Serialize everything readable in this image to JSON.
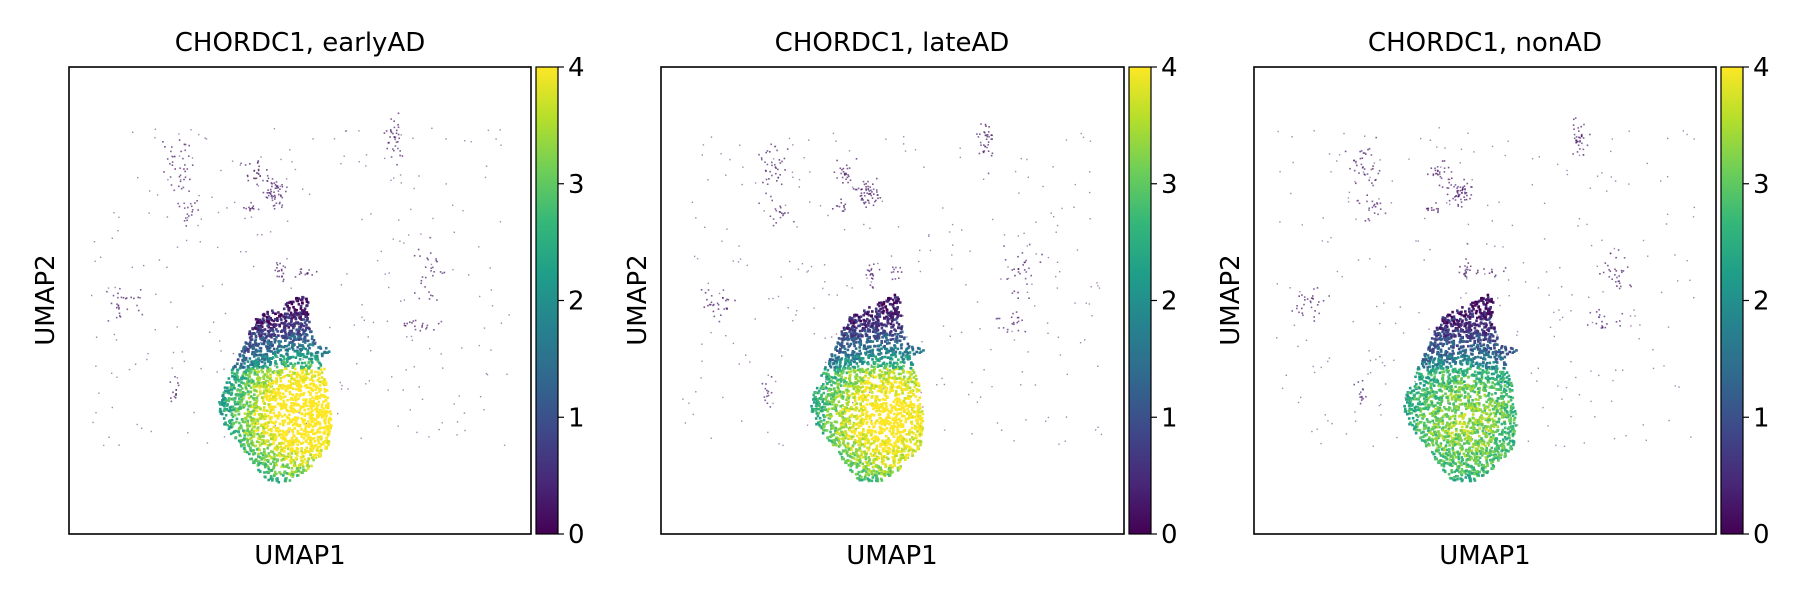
{
  "figure": {
    "panels": [
      {
        "title": "CHORDC1, earlyAD",
        "xlabel": "UMAP1",
        "ylabel": "UMAP2"
      },
      {
        "title": "CHORDC1, lateAD",
        "xlabel": "UMAP1",
        "ylabel": "UMAP2"
      },
      {
        "title": "CHORDC1, nonAD",
        "xlabel": "UMAP1",
        "ylabel": "UMAP2"
      }
    ],
    "colorbar": {
      "colormap": "viridis",
      "ticks": [
        "0",
        "1",
        "2",
        "3",
        "4"
      ],
      "stops": [
        "#440154",
        "#482878",
        "#3e4989",
        "#31688e",
        "#26828e",
        "#1f9e89",
        "#35b779",
        "#6ece58",
        "#b5de2b",
        "#fde725"
      ]
    }
  },
  "chart_data": [
    {
      "type": "scatter",
      "title": "CHORDC1, earlyAD",
      "xlabel": "UMAP1",
      "ylabel": "UMAP2",
      "color_range": [
        0,
        4
      ],
      "color_ticks": [
        0,
        1,
        2,
        3,
        4
      ],
      "colormap": "viridis",
      "axis_ticks": "hidden",
      "regions": [
        {
          "name": "main cluster",
          "x": 5.8,
          "y": 3.0,
          "expression": "high (0-4, yellow at lower right)"
        },
        {
          "name": "upper small clusters",
          "x": 4.2,
          "y": 7.5,
          "expression": "low (~0)"
        },
        {
          "name": "left scattered cells",
          "x": 1.5,
          "y": 4.5,
          "expression": "low (~0)"
        },
        {
          "name": "right scattered cells",
          "x": 8.0,
          "y": 5.0,
          "expression": "low (~0)"
        }
      ]
    },
    {
      "type": "scatter",
      "title": "CHORDC1, lateAD",
      "xlabel": "UMAP1",
      "ylabel": "UMAP2",
      "color_range": [
        0,
        4
      ],
      "color_ticks": [
        0,
        1,
        2,
        3,
        4
      ],
      "colormap": "viridis",
      "axis_ticks": "hidden",
      "regions": [
        {
          "name": "main cluster",
          "x": 5.5,
          "y": 3.0,
          "expression": "high (0-4, yellow at lower right)"
        },
        {
          "name": "upper small clusters",
          "x": 4.5,
          "y": 7.5,
          "expression": "low (~0)"
        }
      ]
    },
    {
      "type": "scatter",
      "title": "CHORDC1, nonAD",
      "xlabel": "UMAP1",
      "ylabel": "UMAP2",
      "color_range": [
        0,
        4
      ],
      "color_ticks": [
        0,
        1,
        2,
        3,
        4
      ],
      "colormap": "viridis",
      "axis_ticks": "hidden",
      "regions": [
        {
          "name": "main cluster",
          "x": 5.5,
          "y": 3.0,
          "expression": "moderate (0-3, green at lower center)"
        },
        {
          "name": "upper small clusters",
          "x": 4.5,
          "y": 7.5,
          "expression": "low (~0)"
        }
      ]
    }
  ]
}
